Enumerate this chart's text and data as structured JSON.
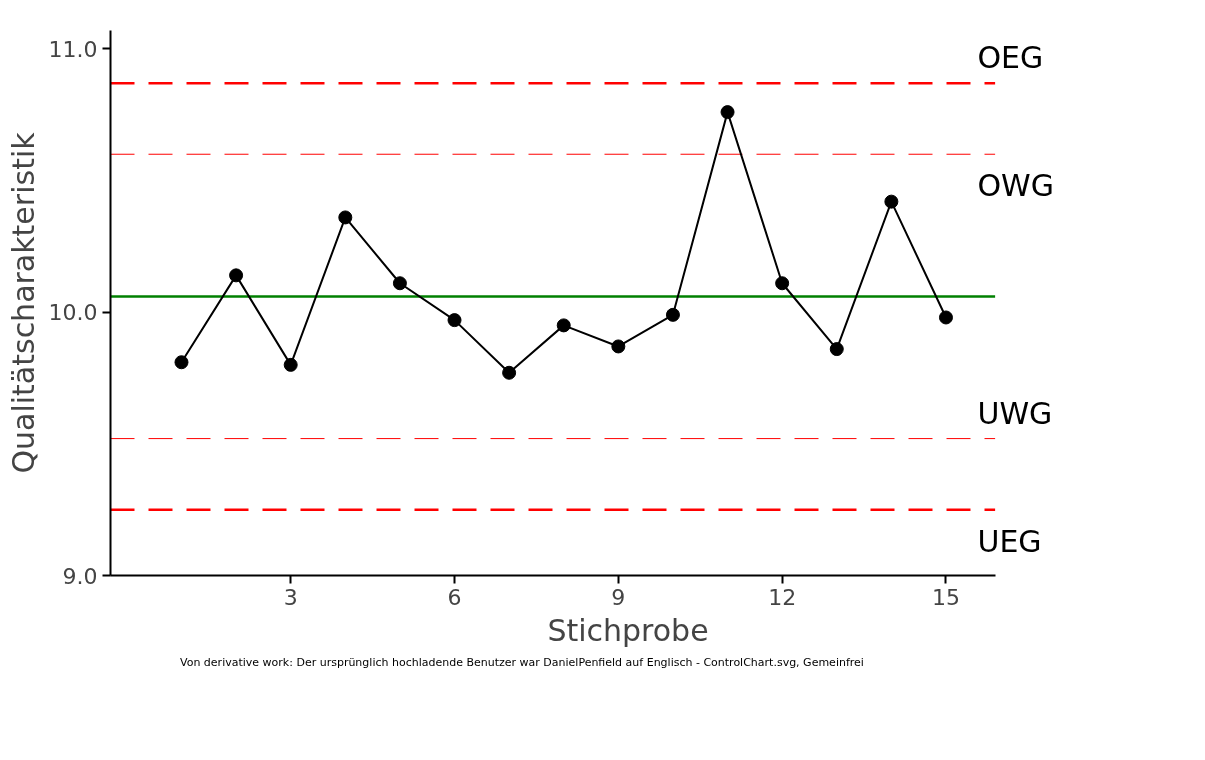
{
  "chart_data": {
    "type": "line",
    "xlabel": "Stichprobe",
    "ylabel": "Qualitätscharakteristik",
    "x": [
      1,
      2,
      3,
      4,
      5,
      6,
      7,
      8,
      9,
      10,
      11,
      12,
      13,
      14,
      15
    ],
    "series": [
      {
        "color": "#000000",
        "values": [
          9.81,
          10.14,
          9.8,
          10.36,
          10.11,
          9.97,
          9.77,
          9.95,
          9.87,
          9.99,
          10.76,
          10.11,
          9.86,
          10.42,
          9.98
        ]
      }
    ],
    "marker": "circle",
    "line_style": "solid",
    "grid": false,
    "xlim": [
      -0.3,
      15.9
    ],
    "xticks": [
      3,
      6,
      9,
      12,
      15
    ],
    "ylim": [
      9.0,
      11.07
    ],
    "yticks": [
      {
        "value": 9,
        "label": "9.0"
      },
      {
        "value": 10,
        "label": "10.0"
      },
      {
        "value": 11,
        "label": "11.0"
      }
    ],
    "ref_lines": [
      {
        "axis": "y",
        "value": 10.87,
        "label": "OEG",
        "color": "#ff0000",
        "line_style": "dashed"
      },
      {
        "axis": "y",
        "value": 10.6,
        "label": "OWG",
        "color": "#ff0000",
        "line_style": "dashed"
      },
      {
        "axis": "y",
        "value": 10.06,
        "color": "#008000",
        "line_style": "solid"
      },
      {
        "axis": "y",
        "value": 9.52,
        "label": "UWG",
        "color": "#ff0000",
        "line_style": "dashed"
      },
      {
        "axis": "y",
        "value": 9.25,
        "label": "UEG",
        "color": "#ff0000",
        "line_style": "dashed"
      }
    ],
    "annotations": [
      "Von derivative work: Der ursprünglich hochladende Benutzer war DanielPenfield auf Englisch - ControlChart.svg, Gemeinfrei"
    ]
  }
}
